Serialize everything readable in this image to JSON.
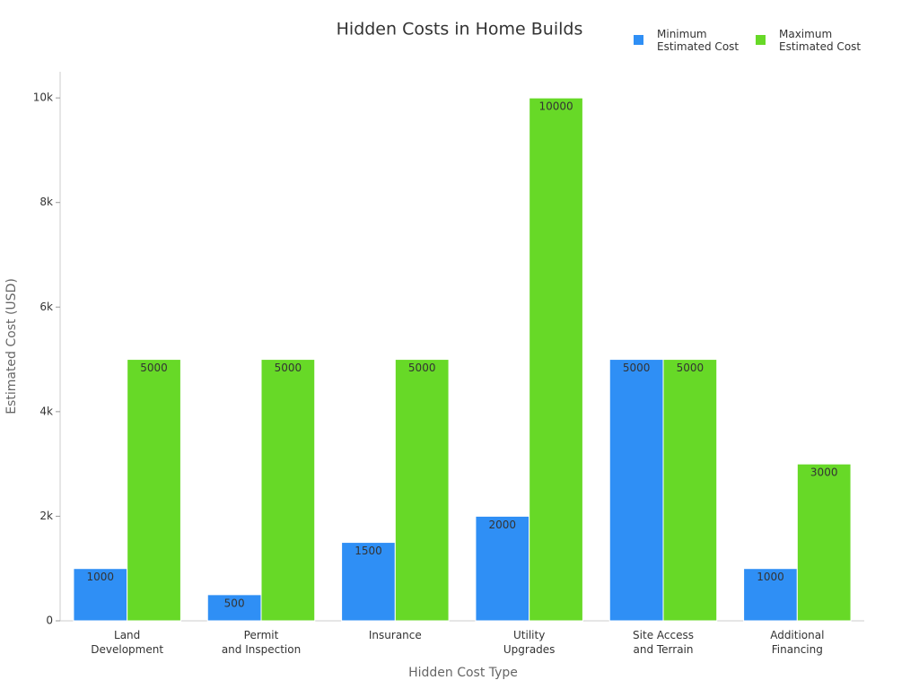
{
  "chart_data": {
    "type": "bar",
    "title": "Hidden Costs in Home Builds",
    "x_label": "Hidden Cost Type",
    "y_label": "Estimated Cost (USD)",
    "categories": [
      "Land\nDevelopment",
      "Permit\nand Inspection",
      "Insurance",
      "Utility\nUpgrades",
      "Site Access\nand Terrain",
      "Additional\nFinancing"
    ],
    "series": [
      {
        "name": "Minimum\nEstimated Cost",
        "color": "#2f8ff5",
        "values": [
          1000,
          500,
          1500,
          2000,
          5000,
          1000
        ]
      },
      {
        "name": "Maximum\nEstimated Cost",
        "color": "#67d927",
        "values": [
          5000,
          5000,
          5000,
          10000,
          5000,
          3000
        ]
      }
    ],
    "ylim": [
      0,
      10500
    ],
    "yticks": [
      0,
      {
        "value": 2000,
        "label": "2k"
      },
      {
        "value": 4000,
        "label": "4k"
      },
      {
        "value": 6000,
        "label": "6k"
      },
      {
        "value": 8000,
        "label": "8k"
      },
      {
        "value": 10000,
        "label": "10k"
      }
    ],
    "grid": false,
    "legend": "top-right"
  }
}
